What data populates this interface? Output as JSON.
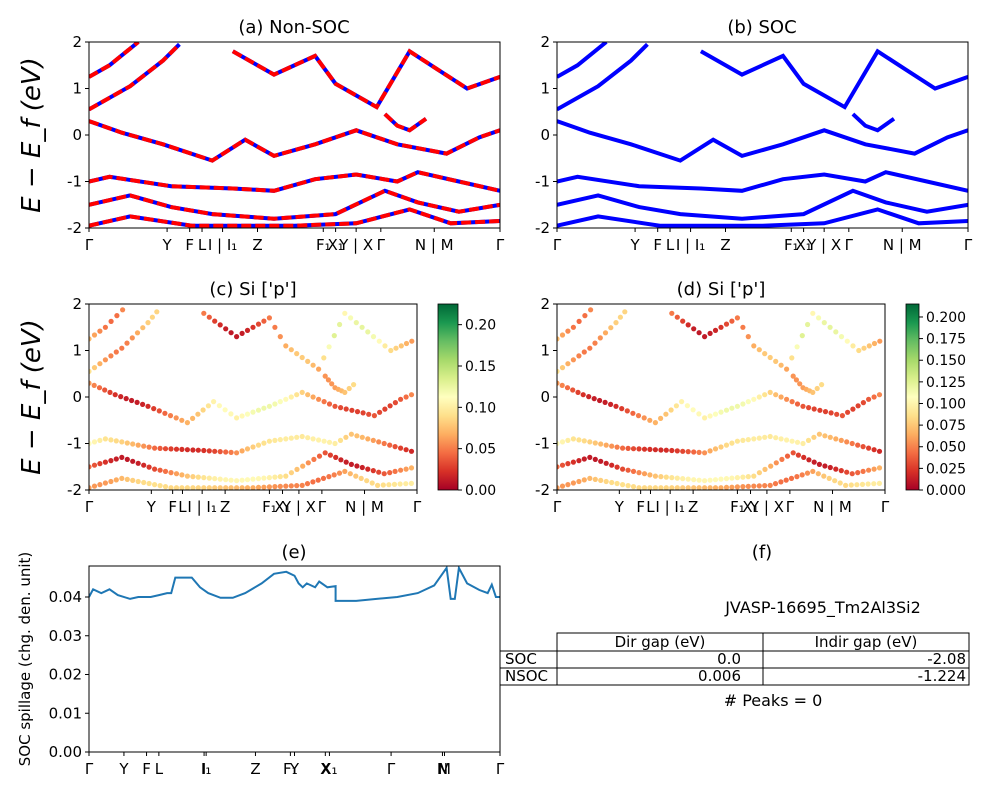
{
  "chart_data": [
    {
      "type": "line",
      "title": "(a) Non-SOC",
      "ylabel": "E − E_f (eV)",
      "ylim": [
        -2,
        2
      ],
      "yticks": [
        -2,
        -1,
        0,
        1,
        2
      ],
      "kpath_ticks": [
        "Γ",
        "Y",
        "F",
        "L",
        "I | I₁",
        "Z",
        "F₁",
        "X₁",
        "Y | X",
        "Γ",
        "N | M",
        "Γ"
      ],
      "series": [
        {
          "style": "spin-up (red solid) overlaid with spin-down (blue dashed)",
          "points": [
            [
              0,
              1.25
            ],
            [
              0.05,
              1.5
            ],
            [
              0.12,
              2.0
            ]
          ]
        },
        {
          "points": [
            [
              0,
              0.55
            ],
            [
              0.1,
              1.05
            ],
            [
              0.18,
              1.6
            ],
            [
              0.22,
              1.95
            ]
          ]
        },
        {
          "points": [
            [
              0,
              0.3
            ],
            [
              0.08,
              0.05
            ],
            [
              0.18,
              -0.2
            ],
            [
              0.3,
              -0.55
            ],
            [
              0.38,
              -0.1
            ],
            [
              0.45,
              -0.45
            ],
            [
              0.55,
              -0.2
            ],
            [
              0.65,
              0.1
            ],
            [
              0.75,
              -0.2
            ],
            [
              0.87,
              -0.4
            ],
            [
              0.95,
              -0.05
            ],
            [
              1.0,
              0.1
            ]
          ]
        },
        {
          "points": [
            [
              0,
              -1.0
            ],
            [
              0.05,
              -0.9
            ],
            [
              0.2,
              -1.1
            ],
            [
              0.35,
              -1.15
            ],
            [
              0.45,
              -1.2
            ],
            [
              0.55,
              -0.95
            ],
            [
              0.65,
              -0.85
            ],
            [
              0.75,
              -1.0
            ],
            [
              0.8,
              -0.8
            ],
            [
              0.9,
              -1.0
            ],
            [
              1.0,
              -1.2
            ]
          ]
        },
        {
          "points": [
            [
              0,
              -1.5
            ],
            [
              0.1,
              -1.3
            ],
            [
              0.2,
              -1.55
            ],
            [
              0.3,
              -1.7
            ],
            [
              0.45,
              -1.8
            ],
            [
              0.6,
              -1.7
            ],
            [
              0.72,
              -1.2
            ],
            [
              0.8,
              -1.45
            ],
            [
              0.9,
              -1.65
            ],
            [
              1.0,
              -1.5
            ]
          ]
        },
        {
          "points": [
            [
              0,
              -1.95
            ],
            [
              0.1,
              -1.75
            ],
            [
              0.25,
              -1.95
            ],
            [
              0.5,
              -1.95
            ],
            [
              0.65,
              -1.9
            ],
            [
              0.78,
              -1.6
            ],
            [
              0.88,
              -1.9
            ],
            [
              1.0,
              -1.85
            ]
          ]
        },
        {
          "points": [
            [
              0.35,
              1.8
            ],
            [
              0.45,
              1.3
            ],
            [
              0.55,
              1.7
            ],
            [
              0.6,
              1.1
            ],
            [
              0.7,
              0.6
            ],
            [
              0.78,
              1.8
            ],
            [
              0.85,
              1.4
            ],
            [
              0.92,
              1.0
            ],
            [
              1.0,
              1.25
            ]
          ]
        },
        {
          "points": [
            [
              0.72,
              0.45
            ],
            [
              0.75,
              0.2
            ],
            [
              0.78,
              0.1
            ],
            [
              0.82,
              0.35
            ]
          ]
        }
      ]
    },
    {
      "type": "line",
      "title": "(b) SOC",
      "ylim": [
        -2,
        2
      ],
      "yticks": [
        -2,
        -1,
        0,
        1,
        2
      ],
      "kpath_ticks": [
        "Γ",
        "Y",
        "F",
        "L",
        "I | I₁",
        "Z",
        "F₁",
        "X₁",
        "Y | X",
        "Γ",
        "N | M",
        "Γ"
      ],
      "series": [
        {
          "points": [
            [
              0,
              1.25
            ],
            [
              0.05,
              1.5
            ],
            [
              0.12,
              2.0
            ]
          ]
        },
        {
          "points": [
            [
              0,
              0.55
            ],
            [
              0.1,
              1.05
            ],
            [
              0.18,
              1.6
            ],
            [
              0.22,
              1.95
            ]
          ]
        },
        {
          "points": [
            [
              0,
              0.3
            ],
            [
              0.08,
              0.05
            ],
            [
              0.18,
              -0.2
            ],
            [
              0.3,
              -0.55
            ],
            [
              0.38,
              -0.1
            ],
            [
              0.45,
              -0.45
            ],
            [
              0.55,
              -0.2
            ],
            [
              0.65,
              0.1
            ],
            [
              0.75,
              -0.2
            ],
            [
              0.87,
              -0.4
            ],
            [
              0.95,
              -0.05
            ],
            [
              1.0,
              0.1
            ]
          ]
        },
        {
          "points": [
            [
              0,
              -1.0
            ],
            [
              0.05,
              -0.9
            ],
            [
              0.2,
              -1.1
            ],
            [
              0.35,
              -1.15
            ],
            [
              0.45,
              -1.2
            ],
            [
              0.55,
              -0.95
            ],
            [
              0.65,
              -0.85
            ],
            [
              0.75,
              -1.0
            ],
            [
              0.8,
              -0.8
            ],
            [
              0.9,
              -1.0
            ],
            [
              1.0,
              -1.2
            ]
          ]
        },
        {
          "points": [
            [
              0,
              -1.5
            ],
            [
              0.1,
              -1.3
            ],
            [
              0.2,
              -1.55
            ],
            [
              0.3,
              -1.7
            ],
            [
              0.45,
              -1.8
            ],
            [
              0.6,
              -1.7
            ],
            [
              0.72,
              -1.2
            ],
            [
              0.8,
              -1.45
            ],
            [
              0.9,
              -1.65
            ],
            [
              1.0,
              -1.5
            ]
          ]
        },
        {
          "points": [
            [
              0,
              -1.95
            ],
            [
              0.1,
              -1.75
            ],
            [
              0.25,
              -1.95
            ],
            [
              0.5,
              -1.95
            ],
            [
              0.65,
              -1.9
            ],
            [
              0.78,
              -1.6
            ],
            [
              0.88,
              -1.9
            ],
            [
              1.0,
              -1.85
            ]
          ]
        },
        {
          "points": [
            [
              0.35,
              1.8
            ],
            [
              0.45,
              1.3
            ],
            [
              0.55,
              1.7
            ],
            [
              0.6,
              1.1
            ],
            [
              0.7,
              0.6
            ],
            [
              0.78,
              1.8
            ],
            [
              0.85,
              1.4
            ],
            [
              0.92,
              1.0
            ],
            [
              1.0,
              1.25
            ]
          ]
        },
        {
          "points": [
            [
              0.72,
              0.45
            ],
            [
              0.75,
              0.2
            ],
            [
              0.78,
              0.1
            ],
            [
              0.82,
              0.35
            ]
          ]
        }
      ]
    },
    {
      "type": "scatter",
      "title": "(c)  Si ['p']",
      "ylabel": "E − E_f (eV)",
      "ylim": [
        -2,
        2
      ],
      "yticks": [
        -2,
        -1,
        0,
        1,
        2
      ],
      "kpath_ticks": [
        "Γ",
        "Y",
        "F",
        "L",
        "I | I₁",
        "Z",
        "F₁",
        "X₁",
        "Y | X",
        "Γ",
        "N | M",
        "Γ"
      ],
      "colorbar": {
        "colormap": "RdYlGn",
        "min": 0.0,
        "max": 0.225,
        "ticks": [
          "0.00",
          "0.05",
          "0.10",
          "0.15",
          "0.20"
        ]
      }
    },
    {
      "type": "scatter",
      "title": "(d) Si ['p']",
      "ylim": [
        -2,
        2
      ],
      "yticks": [
        -2,
        -1,
        0,
        1,
        2
      ],
      "kpath_ticks": [
        "Γ",
        "Y",
        "F",
        "L",
        "I | I₁",
        "Z",
        "F₁",
        "X₁",
        "Y | X",
        "Γ",
        "N | M",
        "Γ"
      ],
      "colorbar": {
        "colormap": "RdYlGn",
        "min": 0.0,
        "max": 0.215,
        "ticks": [
          "0.000",
          "0.025",
          "0.050",
          "0.075",
          "0.100",
          "0.125",
          "0.150",
          "0.175",
          "0.200"
        ]
      }
    },
    {
      "type": "line",
      "title": "(e)",
      "ylabel": "SOC spillage (chg. den. unit)",
      "ylim": [
        0,
        0.048
      ],
      "yticks": [
        "0.00",
        "0.01",
        "0.02",
        "0.03",
        "0.04"
      ],
      "kpath_ticks": [
        "Γ",
        "Y",
        "F",
        "L",
        "I",
        "I₁",
        "Z",
        "F₁",
        "Y",
        "X",
        "X₁",
        "Γ",
        "N",
        "M",
        "Γ"
      ],
      "series": [
        {
          "color": "#1f77b4",
          "points": [
            [
              0,
              0.04
            ],
            [
              0.01,
              0.042
            ],
            [
              0.03,
              0.041
            ],
            [
              0.05,
              0.042
            ],
            [
              0.07,
              0.0405
            ],
            [
              0.1,
              0.0395
            ],
            [
              0.12,
              0.04
            ],
            [
              0.15,
              0.04
            ],
            [
              0.17,
              0.0405
            ],
            [
              0.19,
              0.041
            ],
            [
              0.2,
              0.041
            ],
            [
              0.21,
              0.045
            ],
            [
              0.25,
              0.045
            ],
            [
              0.27,
              0.0425
            ],
            [
              0.29,
              0.041
            ],
            [
              0.32,
              0.0398
            ],
            [
              0.35,
              0.0398
            ],
            [
              0.38,
              0.041
            ],
            [
              0.42,
              0.0435
            ],
            [
              0.45,
              0.046
            ],
            [
              0.48,
              0.0465
            ],
            [
              0.5,
              0.0455
            ],
            [
              0.51,
              0.0435
            ],
            [
              0.52,
              0.0425
            ],
            [
              0.53,
              0.0435
            ],
            [
              0.55,
              0.0425
            ],
            [
              0.56,
              0.044
            ],
            [
              0.58,
              0.0425
            ],
            [
              0.6,
              0.0428
            ],
            [
              0.6,
              0.039
            ],
            [
              0.65,
              0.039
            ],
            [
              0.7,
              0.0395
            ],
            [
              0.75,
              0.04
            ],
            [
              0.8,
              0.041
            ],
            [
              0.84,
              0.043
            ],
            [
              0.87,
              0.0475
            ],
            [
              0.88,
              0.0395
            ],
            [
              0.89,
              0.0395
            ],
            [
              0.9,
              0.0475
            ],
            [
              0.92,
              0.0435
            ],
            [
              0.95,
              0.0418
            ],
            [
              0.97,
              0.041
            ],
            [
              0.98,
              0.0432
            ],
            [
              0.99,
              0.04
            ],
            [
              1.0,
              0.04
            ]
          ]
        }
      ]
    }
  ],
  "panel_f": {
    "title": "(f)",
    "material": "JVASP-16695_Tm2Al3Si2",
    "table": {
      "headers": [
        "",
        "Dir gap (eV)",
        "Indir gap (eV)"
      ],
      "rows": [
        [
          "SOC",
          "0.0",
          "-2.08"
        ],
        [
          "NSOC",
          "0.006",
          "-1.224"
        ]
      ]
    },
    "peaks_label": "# Peaks = 0"
  },
  "colors": {
    "spin_up": "#ff0000",
    "spin_down": "#0000ff",
    "soc_band": "#0000ff",
    "spillage": "#1f77b4"
  }
}
